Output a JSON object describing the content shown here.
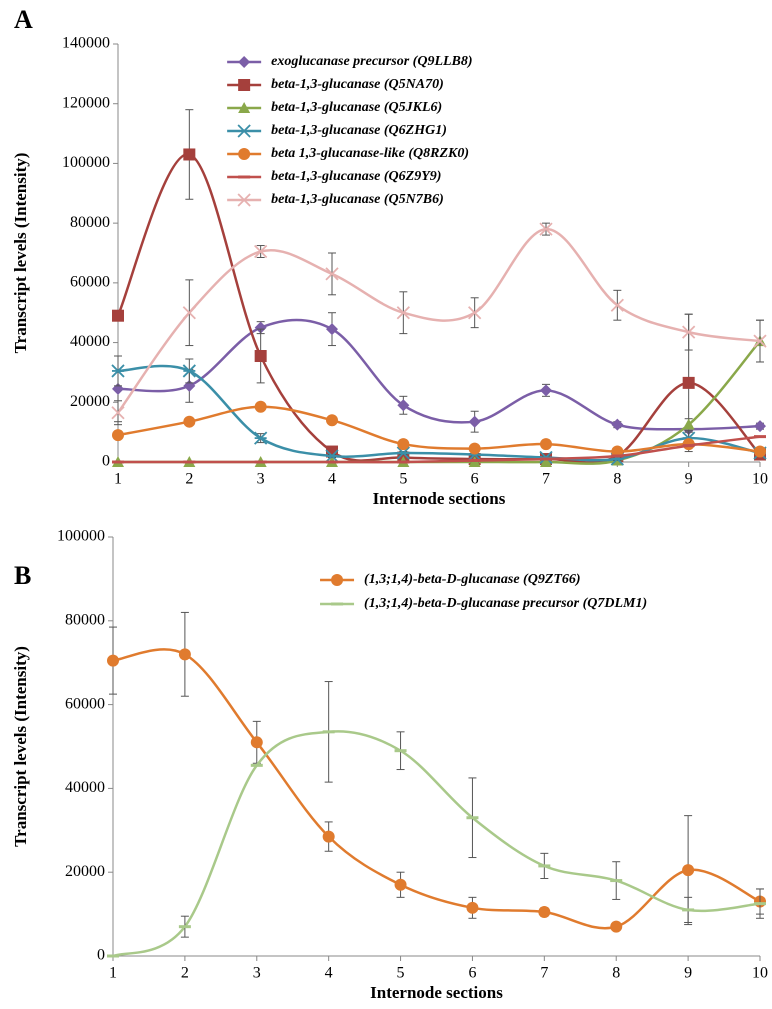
{
  "chart_data": [
    {
      "type": "line",
      "panel_label": "A",
      "x_label": "Internode sections",
      "y_label": "Transcript levels (Intensity)",
      "x": [
        1,
        2,
        3,
        4,
        5,
        6,
        7,
        8,
        9,
        10
      ],
      "xlim": [
        1,
        10
      ],
      "xticks": [
        1,
        2,
        3,
        4,
        5,
        6,
        7,
        8,
        9,
        10
      ],
      "ylim": [
        0,
        140000
      ],
      "yticks": [
        0,
        20000,
        40000,
        60000,
        80000,
        100000,
        120000,
        140000
      ],
      "smooth": true,
      "grid": false,
      "legend_position": "upper center",
      "series": [
        {
          "name": "exoglucanase precursor (Q9LLB8)",
          "color": "#7b5ea7",
          "marker": "diamond",
          "values": [
            24500,
            25500,
            45000,
            44500,
            19000,
            13500,
            24000,
            12500,
            11000,
            12000
          ],
          "errors": [
            11000,
            5500,
            2000,
            5500,
            3000,
            3500,
            2000,
            1000,
            1000,
            1000
          ]
        },
        {
          "name": "beta-1,3-glucanase (Q5NA70)",
          "color": "#a5403c",
          "marker": "square",
          "values": [
            49000,
            103000,
            35500,
            3500,
            1500,
            1000,
            1000,
            2000,
            26500,
            2500
          ],
          "errors": [
            0,
            15000,
            9000,
            1000,
            500,
            500,
            500,
            500,
            23000,
            1000
          ]
        },
        {
          "name": "beta-1,3-glucanase  (Q5JKL6)",
          "color": "#8aa84a",
          "marker": "triangle",
          "values": [
            0,
            0,
            0,
            0,
            0,
            0,
            0,
            500,
            12500,
            40500
          ],
          "errors": [
            0,
            0,
            0,
            0,
            0,
            0,
            0,
            0,
            2000,
            7000
          ]
        },
        {
          "name": "beta-1,3-glucanase (Q6ZHG1)",
          "color": "#3b8fa8",
          "marker": "asterisk",
          "values": [
            30500,
            30500,
            8000,
            2000,
            3000,
            2500,
            1500,
            1000,
            8000,
            3000
          ],
          "errors": [
            5000,
            4000,
            1500,
            500,
            500,
            500,
            500,
            500,
            2000,
            1000
          ]
        },
        {
          "name": "beta 1,3-glucanase-like (Q8RZK0)",
          "color": "#e07b2e",
          "marker": "circle",
          "values": [
            9000,
            13500,
            18500,
            14000,
            6000,
            4500,
            6000,
            3500,
            6000,
            3500
          ],
          "errors": [
            1000,
            1000,
            1000,
            1000,
            500,
            500,
            500,
            500,
            1000,
            500
          ]
        },
        {
          "name": "beta-1,3-glucanase  (Q6Z9Y9)",
          "color": "#c0504d",
          "marker": "dash",
          "values": [
            0,
            0,
            0,
            0,
            0,
            500,
            1000,
            2000,
            5500,
            8500
          ],
          "errors": [
            0,
            0,
            0,
            0,
            0,
            0,
            0,
            0,
            0,
            0
          ]
        },
        {
          "name": "beta-1,3-glucanase (Q5N7B6)",
          "color": "#e6b1b0",
          "marker": "x",
          "values": [
            16500,
            50000,
            70500,
            63000,
            50000,
            50000,
            78000,
            52500,
            43500,
            40500
          ],
          "errors": [
            4000,
            11000,
            2000,
            7000,
            7000,
            5000,
            2000,
            5000,
            6000,
            7000
          ]
        }
      ]
    },
    {
      "type": "line",
      "panel_label": "B",
      "x_label": "Internode sections",
      "y_label": "Transcript levels (Intensity)",
      "x": [
        1,
        2,
        3,
        4,
        5,
        6,
        7,
        8,
        9,
        10
      ],
      "xlim": [
        1,
        10
      ],
      "xticks": [
        1,
        2,
        3,
        4,
        5,
        6,
        7,
        8,
        9,
        10
      ],
      "ylim": [
        0,
        100000
      ],
      "yticks": [
        0,
        20000,
        40000,
        60000,
        80000,
        100000
      ],
      "smooth": true,
      "grid": false,
      "legend_position": "upper right",
      "series": [
        {
          "name": "(1,3;1,4)-beta-D-glucanase (Q9ZT66)",
          "color": "#e07b2e",
          "marker": "circle",
          "values": [
            70500,
            72000,
            51000,
            28500,
            17000,
            11500,
            10500,
            7000,
            20500,
            13000
          ],
          "errors": [
            8000,
            10000,
            5000,
            3500,
            3000,
            2500,
            1000,
            500,
            13000,
            3000
          ]
        },
        {
          "name": "(1,3;1,4)-beta-D-glucanase precursor  (Q7DLM1)",
          "color": "#a9c98a",
          "marker": "dash",
          "values": [
            0,
            7000,
            45500,
            53500,
            49000,
            33000,
            21500,
            18000,
            11000,
            12500
          ],
          "errors": [
            0,
            2500,
            0,
            12000,
            4500,
            9500,
            3000,
            4500,
            3000,
            3500
          ]
        }
      ]
    }
  ]
}
